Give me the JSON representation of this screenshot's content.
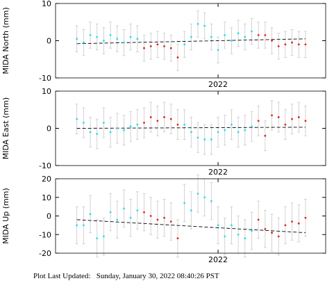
{
  "chart_data": [
    {
      "type": "scatter",
      "ylabel": "MIDA North (mm)",
      "xlim": [
        2021.855,
        2022.096
      ],
      "xticks": [
        2022
      ],
      "ylim": [
        -10,
        10
      ],
      "yticks": [
        -10,
        0,
        10
      ],
      "series": [
        {
          "color": "#22e0e8",
          "x": [
            2021.874,
            2021.88,
            2021.886,
            2021.892,
            2021.898,
            2021.904,
            2021.91,
            2021.916,
            2021.922,
            2021.928,
            2021.97,
            2021.976,
            2021.982,
            2021.988,
            2021.994,
            2022.0,
            2022.006,
            2022.012,
            2022.018,
            2022.024,
            2022.03
          ],
          "values": [
            0.5,
            -0.5,
            1.5,
            1,
            0,
            1.5,
            0.5,
            -0.5,
            1,
            0.5,
            -1,
            1,
            4.5,
            4,
            1,
            -2.5,
            1.5,
            0,
            2,
            1,
            2.5
          ],
          "errors": [
            3.5,
            3.5,
            3.5,
            3.5,
            3.5,
            3.5,
            3.5,
            3.5,
            3.5,
            3.5,
            3.5,
            3.5,
            3.5,
            3.5,
            3.5,
            3.5,
            3.5,
            3.5,
            3.5,
            3.5,
            3.5
          ]
        },
        {
          "color": "#e8201c",
          "x": [
            2021.934,
            2021.94,
            2021.946,
            2021.952,
            2021.958,
            2021.964,
            2022.036,
            2022.042,
            2022.048,
            2022.054,
            2022.06,
            2022.066,
            2022.072,
            2022.078
          ],
          "values": [
            -2,
            -1.5,
            -1,
            -1.5,
            -2,
            -4.5,
            1.5,
            1.5,
            0,
            -1.5,
            -1,
            -0.5,
            -1,
            -1
          ],
          "errors": [
            3.5,
            3.5,
            3.5,
            3.5,
            3.5,
            3.5,
            3.5,
            3.5,
            3.5,
            3.5,
            3.5,
            3.5,
            3.5,
            3.5
          ]
        }
      ],
      "trend": {
        "color": "#000000",
        "x": [
          2021.874,
          2022.078
        ],
        "y": [
          -0.8,
          0.5
        ]
      }
    },
    {
      "type": "scatter",
      "ylabel": "MIDA East (mm)",
      "xlim": [
        2021.855,
        2022.096
      ],
      "xticks": [
        2022
      ],
      "ylim": [
        -10,
        10
      ],
      "yticks": [
        -10,
        0,
        10
      ],
      "series": [
        {
          "color": "#22e0e8",
          "x": [
            2021.874,
            2021.88,
            2021.886,
            2021.892,
            2021.898,
            2021.904,
            2021.91,
            2021.916,
            2021.922,
            2021.928,
            2021.97,
            2021.976,
            2021.982,
            2021.988,
            2021.994,
            2022.0,
            2022.006,
            2022.012,
            2022.018,
            2022.024,
            2022.03
          ],
          "values": [
            2.5,
            1.5,
            -1,
            -1.5,
            1.5,
            -1,
            0,
            -0.5,
            0.5,
            1,
            1,
            -1,
            -2.5,
            -3,
            -3,
            -1,
            -0.5,
            1,
            -1,
            -0.5,
            0.5
          ],
          "errors": [
            4,
            4,
            4,
            4,
            4,
            4,
            4,
            4,
            4,
            4,
            4,
            4,
            4,
            4,
            4,
            4,
            4,
            4,
            4,
            4,
            4
          ]
        },
        {
          "color": "#e8201c",
          "x": [
            2021.934,
            2021.94,
            2021.946,
            2021.952,
            2021.958,
            2021.964,
            2022.036,
            2022.042,
            2022.048,
            2022.054,
            2022.06,
            2022.066,
            2022.072,
            2022.078
          ],
          "values": [
            1.5,
            3,
            2,
            3,
            2.5,
            1,
            2,
            -2,
            3.5,
            3,
            1,
            2.5,
            3,
            2
          ],
          "errors": [
            4,
            4,
            4,
            4,
            4,
            4,
            4,
            4,
            4,
            4,
            4,
            4,
            4,
            4
          ]
        }
      ],
      "trend": {
        "color": "#000000",
        "x": [
          2021.874,
          2022.078
        ],
        "y": [
          0,
          0.3
        ]
      }
    },
    {
      "type": "scatter",
      "ylabel": "MIDA Up (mm)",
      "xlim": [
        2021.855,
        2022.096
      ],
      "xticks": [
        2022
      ],
      "ylim": [
        -20,
        20
      ],
      "yticks": [
        -20,
        -10,
        0,
        10,
        20
      ],
      "series": [
        {
          "color": "#22e0e8",
          "x": [
            2021.874,
            2021.88,
            2021.886,
            2021.892,
            2021.898,
            2021.904,
            2021.91,
            2021.916,
            2021.922,
            2021.928,
            2021.97,
            2021.976,
            2021.982,
            2021.988,
            2021.994,
            2022.0,
            2022.006,
            2022.012,
            2022.018,
            2022.024,
            2022.03
          ],
          "values": [
            -5,
            -5,
            1,
            -12,
            -11,
            2,
            -2,
            4,
            -1,
            3,
            7,
            3,
            12,
            10,
            8,
            -5,
            -11,
            -5,
            -10,
            -12,
            -8
          ],
          "errors": [
            10,
            10,
            10,
            10,
            10,
            10,
            10,
            10,
            10,
            10,
            10,
            10,
            10,
            10,
            10,
            10,
            10,
            10,
            10,
            10,
            10
          ]
        },
        {
          "color": "#e8201c",
          "x": [
            2021.934,
            2021.94,
            2021.946,
            2021.952,
            2021.958,
            2021.964,
            2022.036,
            2022.042,
            2022.048,
            2022.054,
            2022.06,
            2022.066,
            2022.072,
            2022.078
          ],
          "values": [
            2,
            0,
            -2,
            -1,
            -3,
            -12,
            -2,
            -7,
            -9,
            -11,
            -5,
            -3,
            -4,
            -1
          ],
          "errors": [
            10,
            10,
            10,
            10,
            10,
            10,
            10,
            10,
            10,
            10,
            10,
            10,
            10,
            10
          ]
        }
      ],
      "trend": {
        "color": "#000000",
        "x": [
          2021.874,
          2022.078
        ],
        "y": [
          -2,
          -9
        ]
      }
    }
  ],
  "footer": "Plot Last Updated:   Sunday, January 30, 2022 08:40:26 PST"
}
